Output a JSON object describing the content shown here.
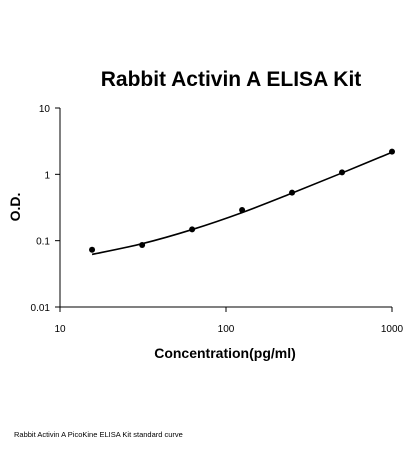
{
  "caption": "Rabbit Activin A PicoKine ELISA Kit standard curve",
  "chart_data": {
    "type": "scatter",
    "title": "Rabbit Activin A ELISA Kit",
    "xlabel": "Concentration(pg/ml)",
    "ylabel": "O.D.",
    "x_scale": "log",
    "y_scale": "log",
    "xlim": [
      10,
      1000
    ],
    "ylim": [
      0.01,
      10
    ],
    "x_ticks": [
      10,
      100,
      1000
    ],
    "x_tick_labels": [
      "10",
      "100",
      "1000"
    ],
    "y_ticks": [
      0.01,
      0.1,
      1,
      10
    ],
    "y_tick_labels": [
      "0.01",
      "0.1",
      "1",
      "10"
    ],
    "grid": false,
    "series": [
      {
        "points": [
          {
            "x": 15.6,
            "y": 0.073
          },
          {
            "x": 31.25,
            "y": 0.086
          },
          {
            "x": 62.5,
            "y": 0.148
          },
          {
            "x": 125,
            "y": 0.29
          },
          {
            "x": 250,
            "y": 0.53
          },
          {
            "x": 500,
            "y": 1.07
          },
          {
            "x": 1000,
            "y": 2.2
          }
        ],
        "fit": [
          {
            "x": 15.6,
            "y": 0.062
          },
          {
            "x": 31.25,
            "y": 0.09
          },
          {
            "x": 62.5,
            "y": 0.147
          },
          {
            "x": 125,
            "y": 0.265
          },
          {
            "x": 250,
            "y": 0.52
          },
          {
            "x": 500,
            "y": 1.05
          },
          {
            "x": 1000,
            "y": 2.15
          }
        ]
      }
    ],
    "colors": {
      "points": "#000000",
      "line": "#000000",
      "axes": "#000000"
    }
  }
}
